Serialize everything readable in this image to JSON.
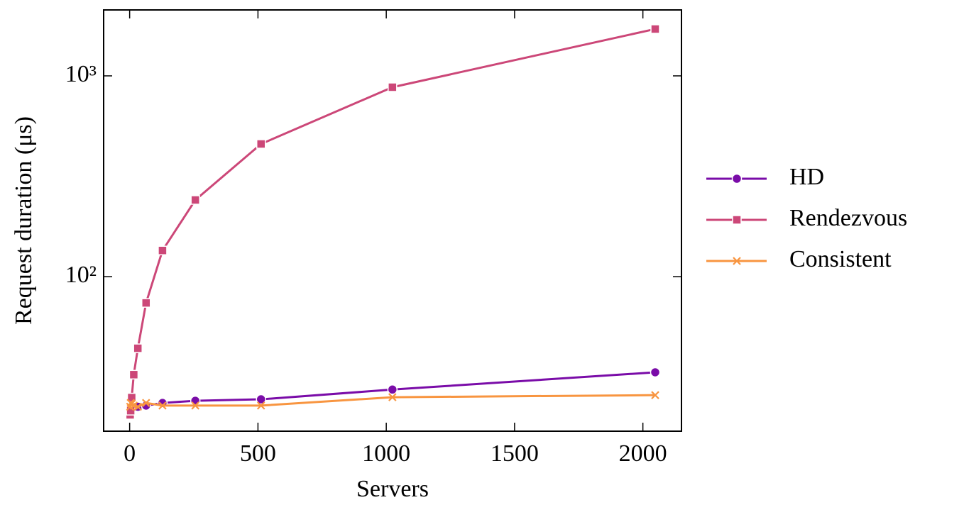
{
  "chart_data": {
    "type": "line",
    "xlabel": "Servers",
    "ylabel": "Request duration (μs)",
    "x": [
      2,
      4,
      8,
      16,
      32,
      64,
      128,
      256,
      512,
      1024,
      2048
    ],
    "series": [
      {
        "name": "HD",
        "color": "#7a0ca8",
        "marker": "circle",
        "values": [
          21,
          21.5,
          22,
          22.3,
          22.5,
          22.8,
          23.5,
          24.1,
          24.5,
          27.4,
          33.4
        ]
      },
      {
        "name": "Rendezvous",
        "color": "#cc4778",
        "marker": "square",
        "values": [
          20.5,
          21.5,
          25,
          32.5,
          44,
          74,
          135,
          241,
          458,
          878,
          1711
        ]
      },
      {
        "name": "Consistent",
        "color": "#f89540",
        "marker": "x",
        "values": [
          22.5,
          23.5,
          23.3,
          22.8,
          22.5,
          23.5,
          22.8,
          22.8,
          22.8,
          25.1,
          25.7
        ]
      }
    ],
    "xlim": [
      -101.35,
      2150.35
    ],
    "xticks": [
      0,
      500,
      1000,
      1500,
      2000
    ],
    "ylim": [
      17,
      2130
    ],
    "yscale": "log",
    "yticks": [
      {
        "value": 100,
        "label": "10²"
      },
      {
        "value": 1000,
        "label": "10³"
      }
    ],
    "legend": "outside right"
  }
}
